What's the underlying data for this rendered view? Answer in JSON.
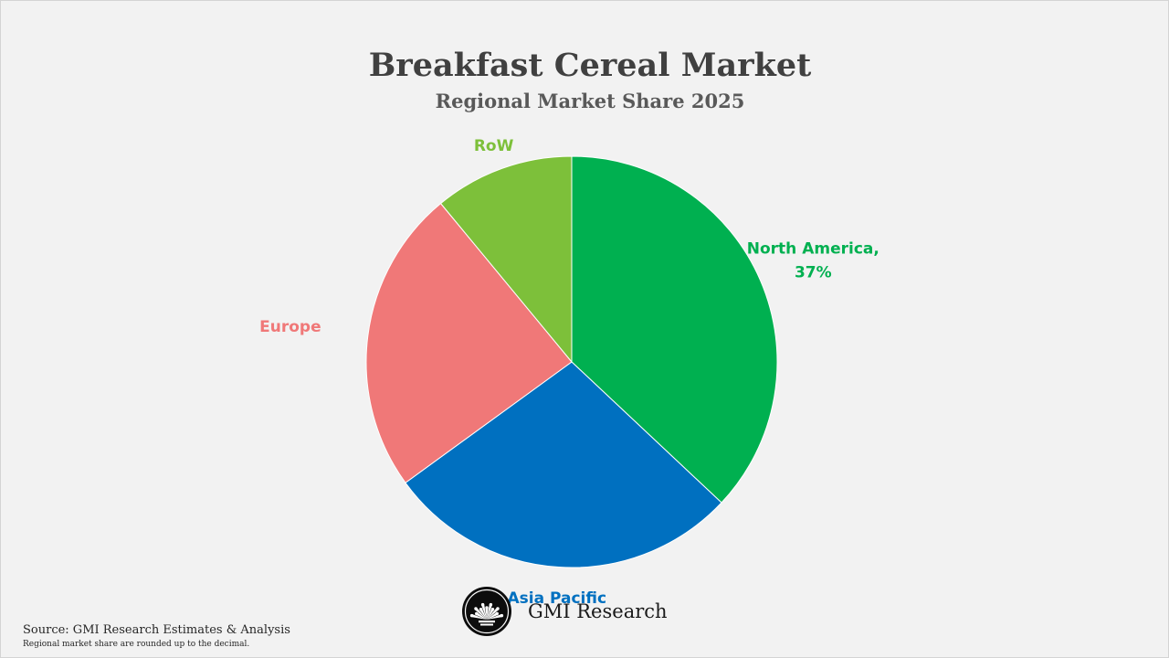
{
  "chart_data": {
    "type": "pie",
    "title": "Breakfast Cereal Market",
    "subtitle": "Regional Market Share 2025",
    "start_angle_deg": 0,
    "direction": "clockwise",
    "slices": [
      {
        "name": "North America",
        "value": 37,
        "color": "#00b050",
        "label_text": "North America,",
        "value_label": "37%"
      },
      {
        "name": "Asia Pacific",
        "value": 28,
        "color": "#0070c0",
        "label_text": "Asia Pacific",
        "value_label": ""
      },
      {
        "name": "Europe",
        "value": 24,
        "color": "#f07878",
        "label_text": "Europe",
        "value_label": ""
      },
      {
        "name": "RoW",
        "value": 11,
        "color": "#7dc03a",
        "label_text": "RoW",
        "value_label": ""
      }
    ]
  },
  "brand": {
    "name": "GMI Research",
    "logo_icon": "gmi-fan-logo-icon"
  },
  "footer": {
    "source": "Source: GMI Research Estimates & Analysis",
    "note": "Regional market share are rounded up to the decimal."
  }
}
